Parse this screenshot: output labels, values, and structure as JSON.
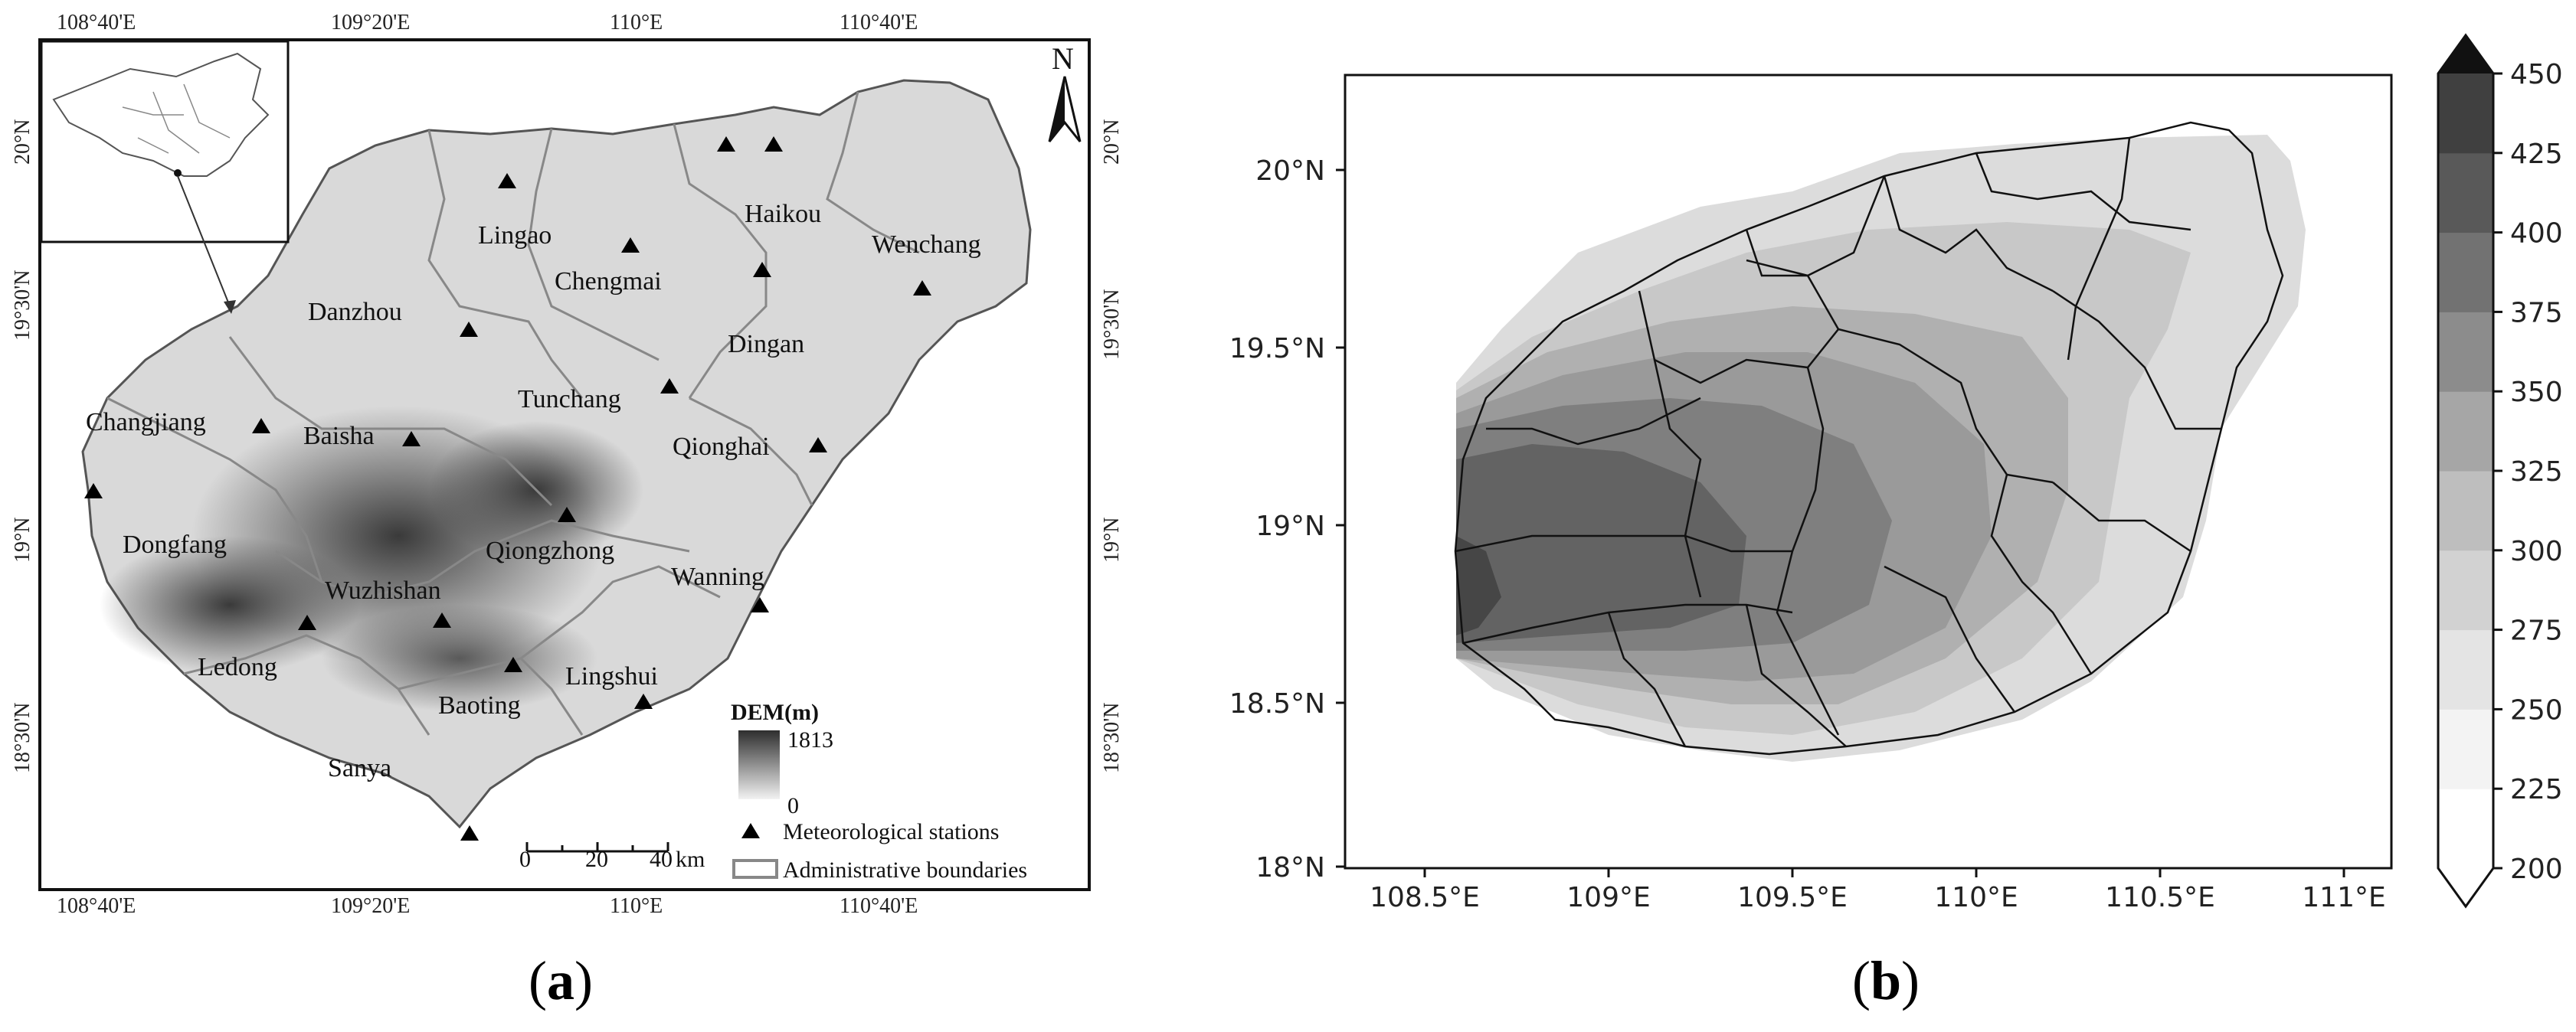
{
  "panel_a": {
    "caption_open": "(",
    "caption_letter": "a",
    "caption_close": ")",
    "top_ticks": [
      "108°40'E",
      "109°20'E",
      "110°E",
      "110°40'E"
    ],
    "bottom_ticks": [
      "108°40'E",
      "109°20'E",
      "110°E",
      "110°40'E"
    ],
    "left_ticks": [
      "20°N",
      "19°30'N",
      "19°N",
      "18°30'N"
    ],
    "right_ticks": [
      "20°N",
      "19°30'N",
      "19°N",
      "18°30'N"
    ],
    "north_label": "N",
    "cities": [
      "Haikou",
      "Lingao",
      "Chengmai",
      "Wenchang",
      "Danzhou",
      "Dingan",
      "Tunchang",
      "Changjiang",
      "Baisha",
      "Qionghai",
      "Dongfang",
      "Qiongzhong",
      "Wuzhishan",
      "Wanning",
      "Ledong",
      "Lingshui",
      "Baoting",
      "Sanya"
    ],
    "legend": {
      "dem_title": "DEM(m)",
      "dem_max": "1813",
      "dem_min": "0",
      "stations_label": "Meteorological stations",
      "boundaries_label": "Administrative boundaries"
    },
    "scale": {
      "labels": [
        "0",
        "20",
        "40"
      ],
      "unit": "km"
    }
  },
  "panel_b": {
    "caption_open": "(",
    "caption_letter": "b",
    "caption_close": ")",
    "y_ticks": [
      "20°N",
      "19.5°N",
      "19°N",
      "18.5°N",
      "18°N"
    ],
    "x_ticks": [
      "108.5°E",
      "109°E",
      "109.5°E",
      "110°E",
      "110.5°E",
      "111°E"
    ],
    "colorbar": {
      "ticks": [
        "450",
        "425",
        "400",
        "375",
        "350",
        "325",
        "300",
        "275",
        "250",
        "225",
        "200"
      ],
      "colors": [
        "#ffffff",
        "#f3f3f3",
        "#e4e4e4",
        "#d2d2d2",
        "#bebebe",
        "#a6a6a6",
        "#8c8c8c",
        "#727272",
        "#595959",
        "#404040",
        "#111111"
      ]
    }
  }
}
